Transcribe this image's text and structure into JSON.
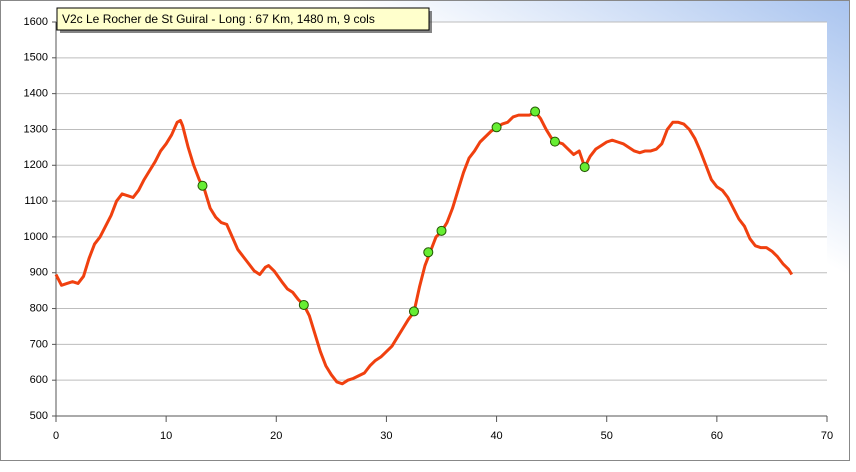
{
  "chart_data": {
    "type": "line",
    "title": "V2c Le Rocher de St Guiral - Long : 67 Km, 1480 m, 9 cols",
    "x": [
      0,
      0.5,
      1,
      1.5,
      2,
      2.5,
      3,
      3.5,
      4,
      4.5,
      5,
      5.5,
      6,
      6.5,
      7,
      7.5,
      8,
      8.5,
      9,
      9.5,
      10,
      10.5,
      11,
      11.3,
      11.5,
      12,
      12.5,
      13,
      13.5,
      14,
      14.5,
      15,
      15.5,
      16,
      16.5,
      17,
      17.5,
      18,
      18.5,
      19,
      19.3,
      19.8,
      20.5,
      21,
      21.5,
      22,
      22.5,
      23,
      23.5,
      24,
      24.5,
      25,
      25.5,
      26,
      26.5,
      27,
      28,
      28.5,
      29,
      29.5,
      30,
      30.5,
      31,
      31.5,
      32,
      32.5,
      33,
      33.5,
      34,
      34.5,
      35,
      35.5,
      36,
      36.5,
      37,
      37.5,
      38,
      38.5,
      39,
      39.5,
      40,
      40.5,
      41,
      41.5,
      42,
      42.5,
      43,
      43.5,
      44,
      44.5,
      45,
      45.5,
      46,
      46.5,
      47,
      47.5,
      48,
      48.5,
      49,
      49.5,
      50,
      50.5,
      51,
      51.5,
      52,
      52.5,
      53,
      53.5,
      54,
      54.5,
      55,
      55.5,
      56,
      56.5,
      57,
      57.5,
      58,
      58.5,
      59,
      59.5,
      60,
      60.5,
      61,
      61.5,
      62,
      62.5,
      63,
      63.5,
      64,
      64.5,
      65,
      65.5,
      66,
      66.5,
      66.8
    ],
    "series": [
      {
        "color": "#f0400f",
        "values": [
          895,
          865,
          870,
          875,
          870,
          890,
          940,
          980,
          1000,
          1030,
          1060,
          1100,
          1120,
          1115,
          1110,
          1130,
          1160,
          1185,
          1210,
          1240,
          1260,
          1285,
          1320,
          1325,
          1310,
          1250,
          1200,
          1160,
          1130,
          1080,
          1055,
          1040,
          1035,
          1000,
          965,
          945,
          925,
          905,
          895,
          915,
          920,
          905,
          875,
          855,
          845,
          825,
          810,
          780,
          730,
          680,
          640,
          615,
          595,
          590,
          600,
          605,
          620,
          640,
          655,
          665,
          680,
          695,
          720,
          745,
          770,
          790,
          860,
          920,
          960,
          1000,
          1015,
          1040,
          1080,
          1130,
          1180,
          1220,
          1240,
          1265,
          1280,
          1295,
          1305,
          1315,
          1320,
          1335,
          1340,
          1340,
          1340,
          1350,
          1330,
          1300,
          1275,
          1265,
          1260,
          1245,
          1230,
          1240,
          1195,
          1225,
          1245,
          1255,
          1265,
          1270,
          1265,
          1260,
          1250,
          1240,
          1235,
          1240,
          1240,
          1245,
          1260,
          1300,
          1320,
          1320,
          1315,
          1300,
          1275,
          1240,
          1200,
          1160,
          1140,
          1130,
          1110,
          1080,
          1050,
          1030,
          995,
          975,
          970,
          970,
          960,
          945,
          925,
          910,
          895
        ]
      }
    ],
    "markers": {
      "color": "#66ee33",
      "x": [
        13.3,
        22.5,
        32.5,
        33.8,
        35,
        40,
        43.5,
        45.3,
        48
      ],
      "values": [
        1143,
        810,
        792,
        957,
        1017,
        1306,
        1350,
        1266,
        1195
      ]
    },
    "xlim": [
      0,
      70
    ],
    "xticks": [
      0,
      10,
      20,
      30,
      40,
      50,
      60,
      70
    ],
    "ylim": [
      500,
      1600
    ],
    "yticks": [
      500,
      600,
      700,
      800,
      900,
      1000,
      1100,
      1200,
      1300,
      1400,
      1500,
      1600
    ],
    "grid": true
  }
}
